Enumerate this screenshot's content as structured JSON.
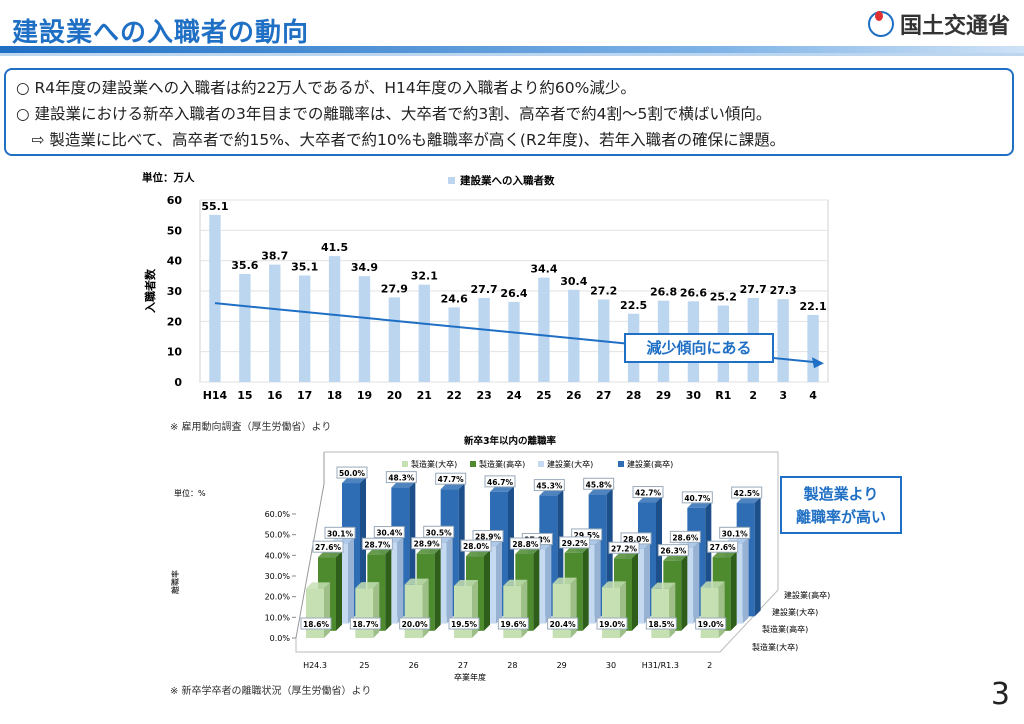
{
  "header": {
    "title": "建設業への入職者の動向",
    "org": "国土交通省"
  },
  "summary": [
    "○ R4年度の建設業への入職者は約22万人であるが、H14年度の入職者より約60%減少。",
    "○ 建設業における新卒入職者の3年目までの離職率は、大卒者で約3割、高卒者で約4割～5割で横ばい傾向。",
    "　⇨ 製造業に比べて、高卒者で約15%、大卒者で約10%も離職率が高く(R2年度)、若年入職者の確保に課題。"
  ],
  "chart1_callout": "減少傾向にある",
  "chart2_callout_line1": "製造業より",
  "chart2_callout_line2": "離職率が高い",
  "page_number": "3",
  "colors": {
    "accent": "#1f6fc4",
    "bar_light": "#bcd6f0",
    "mfg_uni": "#c6e0b4",
    "mfg_hs": "#4e8a2e",
    "con_uni": "#c5d9f1",
    "con_hs": "#2e6db4"
  },
  "chart_data": [
    {
      "type": "bar",
      "title": "",
      "unit_label": "単位：万人",
      "legend": [
        "建設業への入職者数"
      ],
      "ylabel": "入職者数",
      "xlabel": "",
      "ylim": [
        0,
        60
      ],
      "yticks": [
        0,
        10,
        20,
        30,
        40,
        50,
        60
      ],
      "categories": [
        "H14",
        "15",
        "16",
        "17",
        "18",
        "19",
        "20",
        "21",
        "22",
        "23",
        "24",
        "25",
        "26",
        "27",
        "28",
        "29",
        "30",
        "R1",
        "2",
        "3",
        "4"
      ],
      "series": [
        {
          "name": "建設業への入職者数",
          "values": [
            55.1,
            35.6,
            38.7,
            35.1,
            41.5,
            34.9,
            27.9,
            32.1,
            24.6,
            27.7,
            26.4,
            34.4,
            30.4,
            27.2,
            22.5,
            26.8,
            26.6,
            25.2,
            27.7,
            27.3,
            22.1
          ]
        }
      ],
      "trendline": [
        26.0,
        6.2
      ],
      "source": "※ 雇用動向調査（厚生労働省）より"
    },
    {
      "type": "bar",
      "title": "新卒3年以内の離職率",
      "unit_label": "単位：%",
      "ylabel": "離職率",
      "xlabel": "卒業年度",
      "ylim": [
        0,
        60
      ],
      "yticks": [
        "0.0%",
        "10.0%",
        "20.0%",
        "30.0%",
        "40.0%",
        "50.0%",
        "60.0%"
      ],
      "categories": [
        "H24.3",
        "25",
        "26",
        "27",
        "28",
        "29",
        "30",
        "H31/R1.3",
        "2"
      ],
      "series": [
        {
          "name": "製造業(大卒)",
          "depth_label": "製造業(大卒)",
          "values": [
            18.6,
            18.7,
            20.0,
            19.5,
            19.6,
            20.4,
            19.0,
            18.5,
            19.0
          ]
        },
        {
          "name": "製造業(高卒)",
          "depth_label": "製造業(高卒)",
          "values": [
            27.6,
            28.7,
            28.9,
            28.0,
            28.8,
            29.2,
            27.2,
            26.3,
            27.6
          ]
        },
        {
          "name": "建設業(大卒)",
          "depth_label": "建設業(大卒)",
          "values": [
            30.1,
            30.4,
            30.5,
            28.9,
            27.8,
            29.5,
            28.0,
            28.6,
            30.1
          ]
        },
        {
          "name": "建設業(高卒)",
          "depth_label": "建設業(高卒)",
          "values": [
            50.0,
            48.3,
            47.7,
            46.7,
            45.3,
            45.8,
            42.7,
            40.7,
            42.5
          ]
        }
      ],
      "source": "※ 新卒学卒者の離職状況（厚生労働省）より"
    }
  ]
}
